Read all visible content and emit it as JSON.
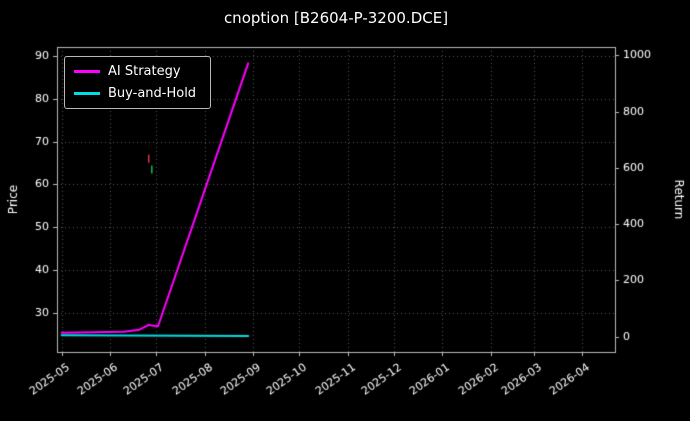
{
  "figure": {
    "background": "#000000",
    "text_color": "#ffffff",
    "spine_color": "#bbbbbb"
  },
  "chart_data": {
    "type": "line",
    "title": "cnoption [B2604-P-3200.DCE]",
    "xlabel": "",
    "x_tick_labels": [
      "2025-05",
      "2025-06",
      "2025-07",
      "2025-08",
      "2025-09",
      "2025-10",
      "2025-11",
      "2025-12",
      "2026-01",
      "2026-02",
      "2026-03",
      "2026-04"
    ],
    "x_domain": [
      "2025-04-28",
      "2026-04-22"
    ],
    "y_left": {
      "label": "Price",
      "ticks": [
        30,
        40,
        50,
        60,
        70,
        80,
        90
      ],
      "lim": [
        21,
        92
      ]
    },
    "y_right": {
      "label": "Return",
      "ticks": [
        0,
        200,
        400,
        600,
        800,
        1000
      ],
      "lim": [
        -55,
        1030
      ]
    },
    "grid": {
      "on": true,
      "style": "dotted",
      "color": "#555555"
    },
    "legend": {
      "position": "upper-left"
    },
    "series": [
      {
        "name": "AI Strategy",
        "color": "#ff00ff",
        "axis": "left",
        "line_width": 2,
        "x": [
          "2025-05-01",
          "2025-06-10",
          "2025-06-20",
          "2025-06-26",
          "2025-07-02",
          "2025-08-29"
        ],
        "y": [
          25.5,
          25.7,
          26.2,
          27.3,
          27.0,
          88.2
        ]
      },
      {
        "name": "Buy-and-Hold",
        "color": "#00dde5",
        "axis": "left",
        "line_width": 2,
        "x": [
          "2025-05-01",
          "2025-08-29"
        ],
        "y": [
          24.9,
          24.7
        ]
      }
    ],
    "markers": [
      {
        "name": "sell-signal",
        "color": "#ee3333",
        "x": "2025-06-26",
        "y": 66.0,
        "shape": "vtick"
      },
      {
        "name": "buy-signal",
        "color": "#22bb44",
        "x": "2025-06-28",
        "y": 63.5,
        "shape": "vtick"
      }
    ]
  }
}
